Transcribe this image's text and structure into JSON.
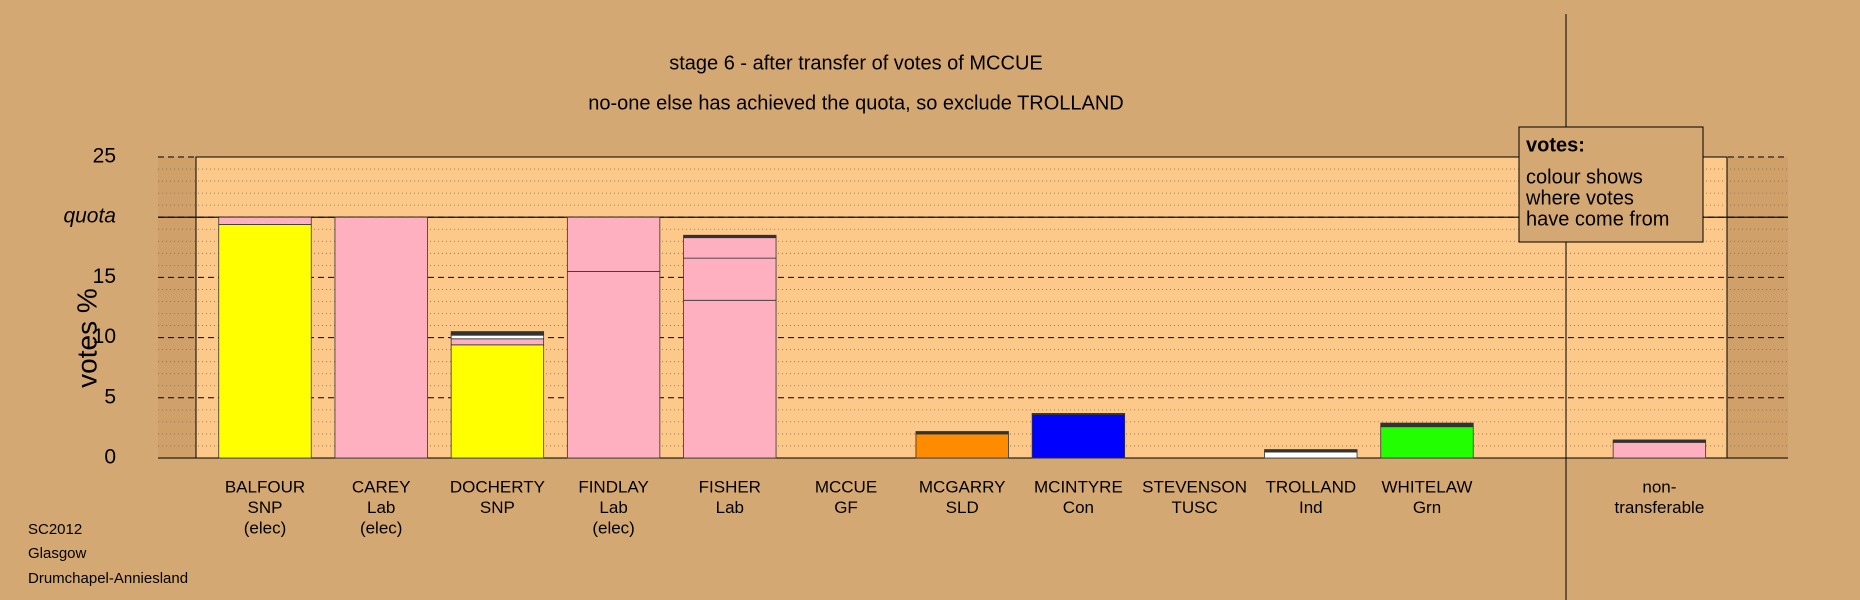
{
  "chart_data": {
    "type": "stacked-bar",
    "title": "stage 6 - after transfer of votes of MCCUE",
    "subtitle": "no-one else has achieved the quota, so exclude TROLLAND",
    "ylabel": "votes %",
    "ylim": [
      0,
      25
    ],
    "yticks": [
      0,
      5,
      10,
      15,
      {
        "value": 20,
        "label": "quota"
      },
      25
    ],
    "minor_yticks": [
      1,
      2,
      3,
      4,
      6,
      7,
      8,
      9,
      11,
      12,
      13,
      14,
      16,
      17,
      18,
      19,
      21,
      22,
      23,
      24
    ],
    "quota": 20,
    "bars": [
      {
        "label": [
          "BALFOUR",
          "SNP",
          "(elec)"
        ],
        "segments": [
          {
            "color": "#ffff00",
            "value": 19.4
          },
          {
            "color": "#ffb0c0",
            "value": 0.6
          }
        ]
      },
      {
        "label": [
          "CAREY",
          "Lab",
          "(elec)"
        ],
        "segments": [
          {
            "color": "#ffb0c0",
            "value": 20
          }
        ]
      },
      {
        "label": [
          "DOCHERTY",
          "SNP"
        ],
        "segments": [
          {
            "color": "#ffff00",
            "value": 9.4
          },
          {
            "color": "#ffb0c0",
            "value": 0.5
          },
          {
            "color": "#ffffff",
            "value": 0.3
          },
          {
            "color": "#333333",
            "value": 0.3
          }
        ]
      },
      {
        "label": [
          "FINDLAY",
          "Lab",
          "(elec)"
        ],
        "segments": [
          {
            "color": "#ffb0c0",
            "value": 15.5
          },
          {
            "color": "#ffb0c0",
            "value": 4.5
          }
        ]
      },
      {
        "label": [
          "FISHER",
          "Lab"
        ],
        "segments": [
          {
            "color": "#ffb0c0",
            "value": 13.1
          },
          {
            "color": "#ffb0c0",
            "value": 3.5
          },
          {
            "color": "#ffb0c0",
            "value": 1.7
          },
          {
            "color": "#333333",
            "value": 0.2
          }
        ]
      },
      {
        "label": [
          "MCCUE",
          "GF"
        ],
        "segments": []
      },
      {
        "label": [
          "MCGARRY",
          "SLD"
        ],
        "segments": [
          {
            "color": "#ff8c00",
            "value": 2.0
          },
          {
            "color": "#333333",
            "value": 0.2
          }
        ]
      },
      {
        "label": [
          "MCINTYRE",
          "Con"
        ],
        "segments": [
          {
            "color": "#0000ff",
            "value": 3.6
          },
          {
            "color": "#333333",
            "value": 0.1
          }
        ]
      },
      {
        "label": [
          "STEVENSON",
          "TUSC"
        ],
        "segments": []
      },
      {
        "label": [
          "TROLLAND",
          "Ind"
        ],
        "segments": [
          {
            "color": "#ffffff",
            "value": 0.5
          },
          {
            "color": "#333333",
            "value": 0.2
          }
        ]
      },
      {
        "label": [
          "WHITELAW",
          "Grn"
        ],
        "segments": [
          {
            "color": "#22ff00",
            "value": 2.6
          },
          {
            "color": "#333333",
            "value": 0.3
          }
        ]
      },
      {
        "label": [
          "non-",
          "transferable"
        ],
        "segments": [
          {
            "color": "#ffb0c0",
            "value": 1.3
          },
          {
            "color": "#333333",
            "value": 0.2
          }
        ]
      }
    ],
    "legend": {
      "title": "votes:",
      "lines": [
        "colour shows",
        "where votes",
        "have come from"
      ]
    },
    "footer": [
      "SC2012",
      "Glasgow",
      "Drumchapel-Anniesland"
    ]
  }
}
